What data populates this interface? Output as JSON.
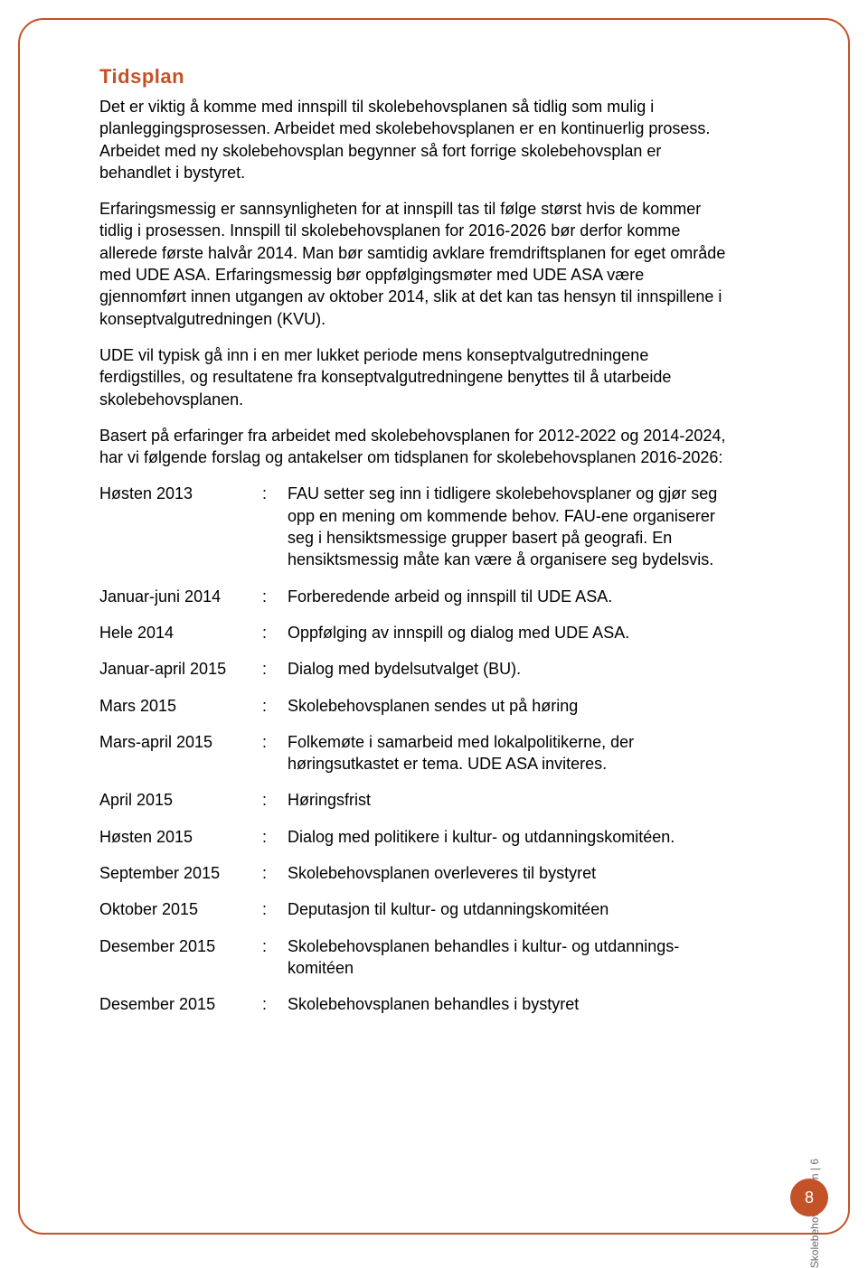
{
  "colors": {
    "accent": "#c45228",
    "text": "#000000",
    "side_label": "#6b6b6b",
    "background": "#ffffff",
    "badge_text": "#ffffff"
  },
  "typography": {
    "body_fontsize": 18,
    "heading_fontsize": 22,
    "side_fontsize": 12,
    "font_family": "Arial"
  },
  "page": {
    "number": "8",
    "side_label": "Skolebehovsplanen | 6"
  },
  "heading": "Tidsplan",
  "paragraphs": [
    "Det er viktig å komme med innspill til skolebehovsplanen så tidlig som mulig i planleggingsprosessen. Arbeidet med skolebehovsplanen er en kontinuerlig prosess. Arbeidet med ny skolebehovsplan begynner så fort forrige skolebehovsplan er behandlet i bystyret.",
    "Erfaringsmessig er sannsynligheten for at innspill tas til følge størst hvis de kommer tidlig i prosessen. Innspill til skolebehovsplanen for 2016-2026 bør derfor komme allerede første halvår 2014. Man bør samtidig avklare fremdriftsplanen for eget område med UDE ASA. Erfaringsmessig bør oppfølgingsmøter med UDE ASA være gjennomført innen utgangen av oktober 2014, slik at det kan tas hensyn til innspillene i konseptvalgutredningen (KVU).",
    "UDE vil typisk gå inn i en mer lukket periode mens konseptvalgutredningene ferdigstilles, og resultatene fra konseptvalgutredningene benyttes til å utarbeide skolebehovsplanen.",
    "Basert på erfaringer fra arbeidet med skolebehovsplanen for 2012-2022 og 2014-2024, har vi følgende forslag og antakelser om tidsplanen for skolebehovsplanen 2016-2026:"
  ],
  "timeline": [
    {
      "period": "Høsten 2013",
      "desc": "FAU setter seg inn i tidligere skolebehovsplaner og gjør seg opp en mening om kommende behov. FAU-ene organiserer seg i hensiktsmessige grupper basert på geografi. En hensiktsmessig måte kan være å organisere seg bydelsvis."
    },
    {
      "period": "Januar-juni 2014",
      "desc": "Forberedende arbeid og innspill til UDE ASA."
    },
    {
      "period": "Hele 2014",
      "desc": "Oppfølging av innspill og dialog med UDE ASA."
    },
    {
      "period": "Januar-april 2015",
      "desc": "Dialog med bydelsutvalget (BU)."
    },
    {
      "period": "Mars 2015",
      "desc": "Skolebehovsplanen sendes ut på høring"
    },
    {
      "period": "Mars-april 2015",
      "desc": "Folkemøte i samarbeid med lokalpolitikerne, der høringsutkastet er tema. UDE ASA inviteres."
    },
    {
      "period": "April 2015",
      "desc": "Høringsfrist"
    },
    {
      "period": "Høsten 2015",
      "desc": "Dialog med politikere i kultur- og utdanningskomitéen."
    },
    {
      "period": "September 2015",
      "desc": "Skolebehovsplanen overleveres til bystyret"
    },
    {
      "period": "Oktober 2015",
      "desc": "Deputasjon til kultur- og utdanningskomitéen"
    },
    {
      "period": "Desember 2015",
      "desc": "Skolebehovsplanen behandles i kultur- og utdannings-komitéen"
    },
    {
      "period": "Desember 2015",
      "desc": "Skolebehovsplanen behandles i bystyret"
    }
  ]
}
